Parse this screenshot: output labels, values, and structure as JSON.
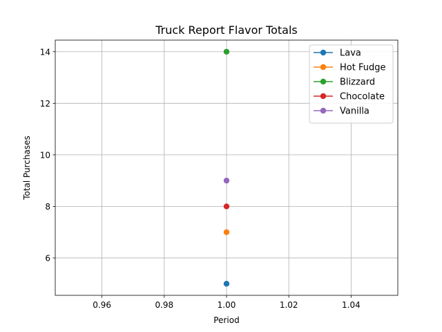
{
  "chart_data": {
    "type": "line",
    "title": "Truck Report Flavor Totals",
    "xlabel": "Period",
    "ylabel": "Total Purchases",
    "xlim": [
      0.945,
      1.055
    ],
    "ylim": [
      4.55,
      14.45
    ],
    "xticks": [
      0.96,
      0.98,
      1.0,
      1.02,
      1.04
    ],
    "xtick_labels": [
      "0.96",
      "0.98",
      "1.00",
      "1.02",
      "1.04"
    ],
    "yticks": [
      6,
      8,
      10,
      12,
      14
    ],
    "ytick_labels": [
      "6",
      "8",
      "10",
      "12",
      "14"
    ],
    "grid": true,
    "legend_position": "top-right",
    "x": [
      1
    ],
    "series": [
      {
        "name": "Lava",
        "values": [
          5
        ],
        "color": "#1f77b4"
      },
      {
        "name": "Hot Fudge",
        "values": [
          7
        ],
        "color": "#ff7f0e"
      },
      {
        "name": "Blizzard",
        "values": [
          14
        ],
        "color": "#2ca02c"
      },
      {
        "name": "Chocolate",
        "values": [
          8
        ],
        "color": "#d62728"
      },
      {
        "name": "Vanilla",
        "values": [
          9
        ],
        "color": "#9467bd"
      }
    ]
  }
}
